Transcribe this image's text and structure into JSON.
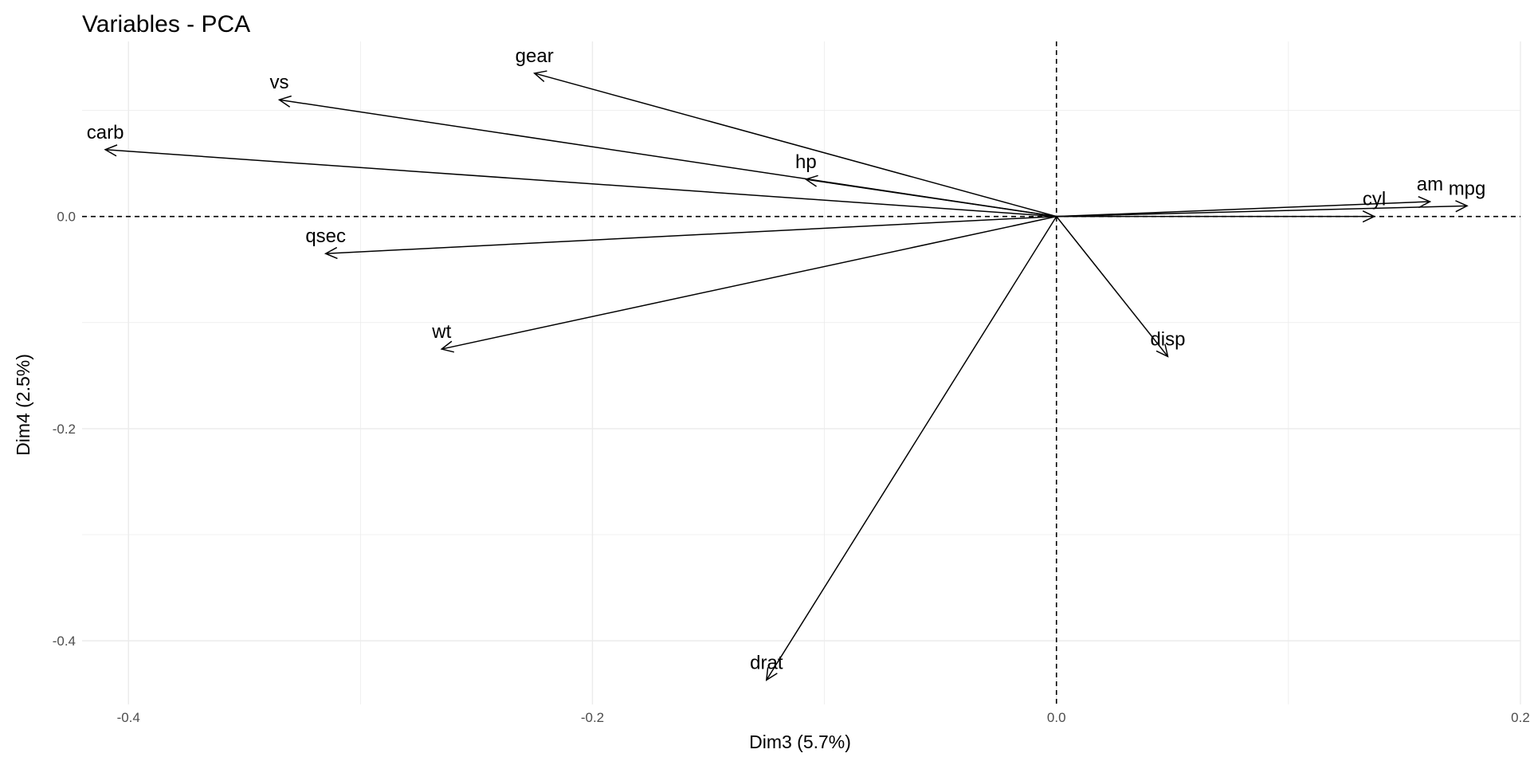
{
  "chart_data": {
    "type": "scatter",
    "subtype": "pca-variable-correlation-arrows",
    "title": "Variables - PCA",
    "xlabel": "Dim3 (5.7%)",
    "ylabel": "Dim4 (2.5%)",
    "xlim": [
      -0.42,
      0.2
    ],
    "ylim": [
      -0.46,
      0.165
    ],
    "x_ticks": [
      {
        "value": -0.4,
        "label": "-0.4"
      },
      {
        "value": -0.2,
        "label": "-0.2"
      },
      {
        "value": 0.0,
        "label": "0.0"
      },
      {
        "value": 0.2,
        "label": "0.2"
      }
    ],
    "y_ticks": [
      {
        "value": 0.0,
        "label": "0.0"
      },
      {
        "value": -0.2,
        "label": "-0.2"
      },
      {
        "value": -0.4,
        "label": "-0.4"
      }
    ],
    "grid": true,
    "reference_lines": {
      "x": 0,
      "y": 0,
      "style": "dashed"
    },
    "arrow_color": "#000000",
    "grid_color": "#ebebeb",
    "variables": [
      {
        "name": "mpg",
        "x": 0.177,
        "y": 0.01
      },
      {
        "name": "cyl",
        "x": 0.137,
        "y": 0.0
      },
      {
        "name": "disp",
        "x": 0.048,
        "y": -0.132
      },
      {
        "name": "hp",
        "x": -0.108,
        "y": 0.035
      },
      {
        "name": "drat",
        "x": -0.125,
        "y": -0.437
      },
      {
        "name": "wt",
        "x": -0.265,
        "y": -0.125
      },
      {
        "name": "qsec",
        "x": -0.315,
        "y": -0.035
      },
      {
        "name": "vs",
        "x": -0.335,
        "y": 0.11
      },
      {
        "name": "am",
        "x": 0.161,
        "y": 0.014
      },
      {
        "name": "gear",
        "x": -0.225,
        "y": 0.135
      },
      {
        "name": "carb",
        "x": -0.41,
        "y": 0.063
      }
    ]
  }
}
